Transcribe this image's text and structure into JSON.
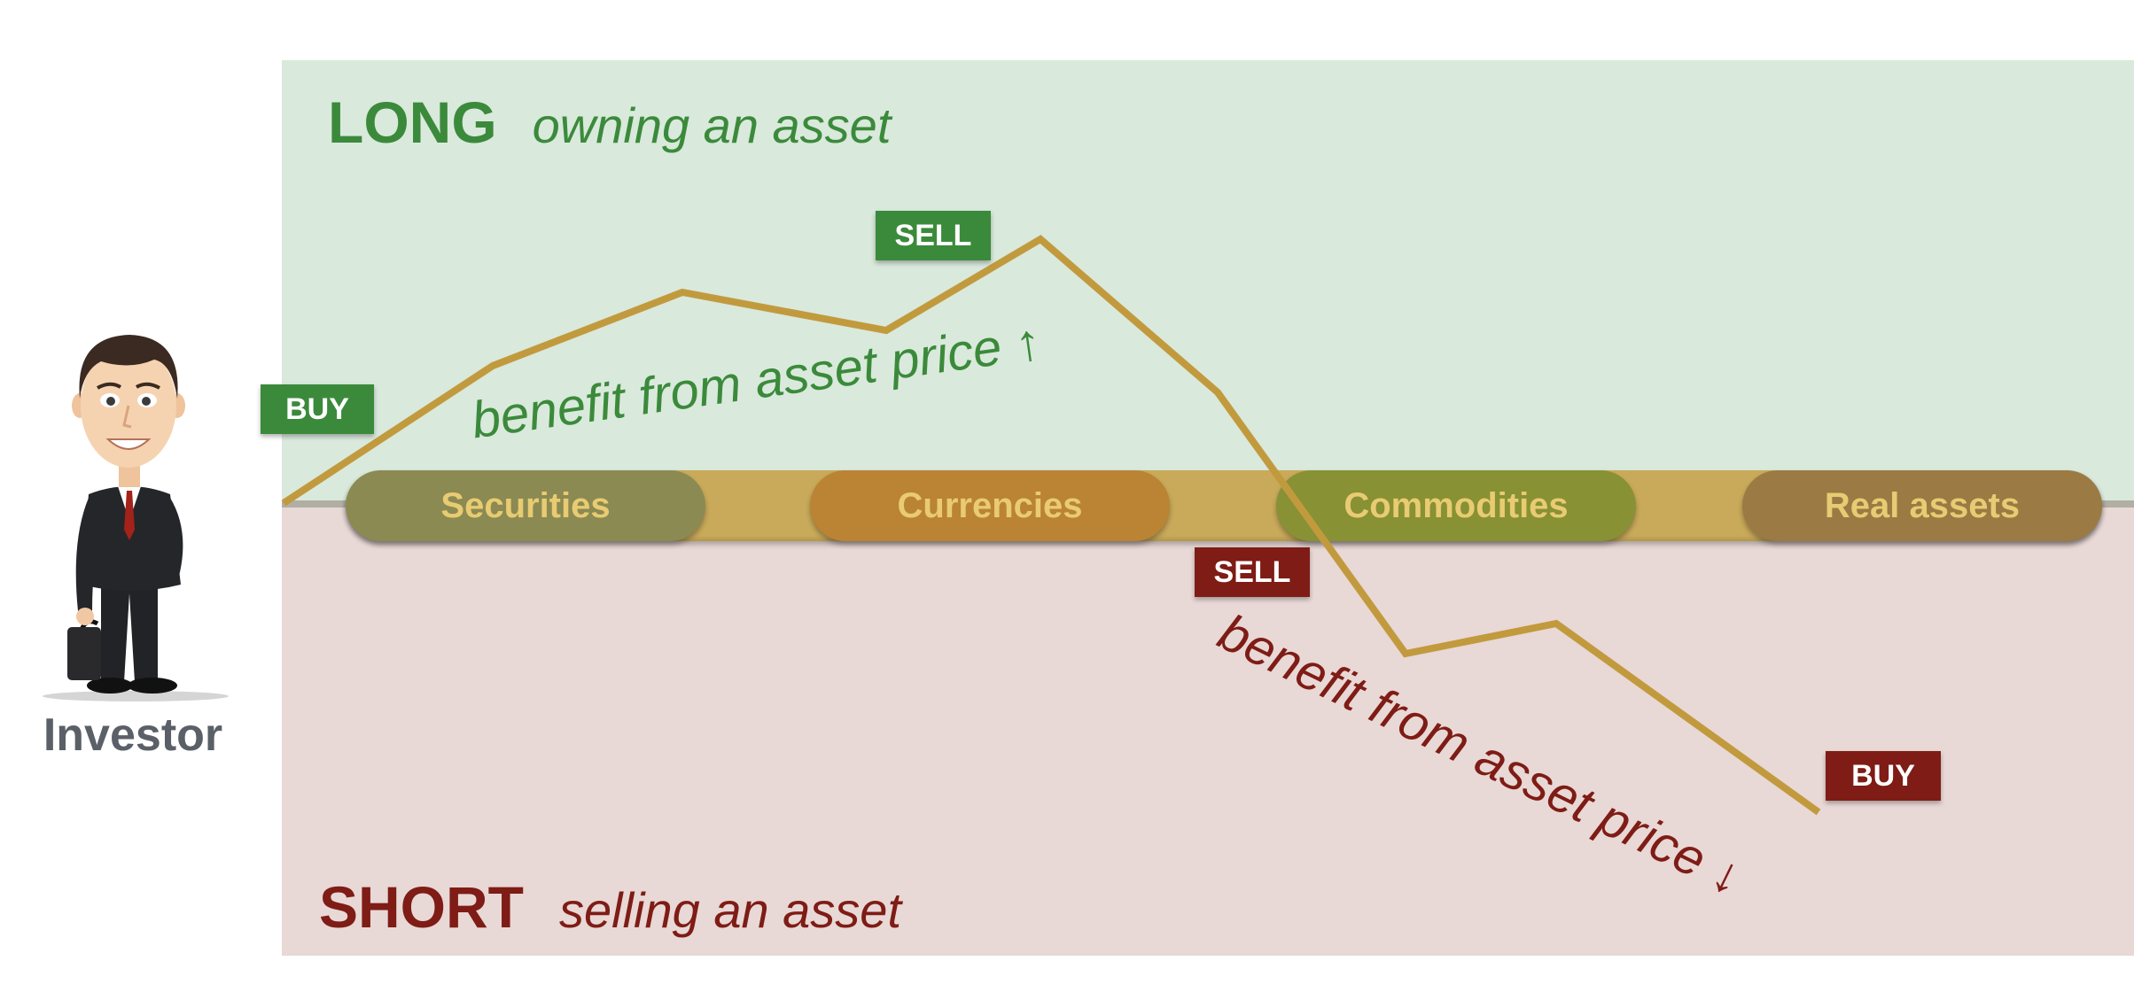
{
  "long": {
    "word": "LONG",
    "description": "owning an asset",
    "benefit": "benefit from asset price ↑",
    "tag_buy": "BUY",
    "tag_sell": "SELL",
    "color": "#3b8a3b",
    "zone_color": "#d9e9dc"
  },
  "short": {
    "word": "SHORT",
    "description": "selling an asset",
    "benefit": "benefit from asset price ↓",
    "tag_sell": "SELL",
    "tag_buy": "BUY",
    "color": "#7e1c15",
    "zone_color": "#e8d8d6"
  },
  "assets": [
    "Securities",
    "Currencies",
    "Commodities",
    "Real assets"
  ],
  "investor": {
    "label": "Investor",
    "icon": "businessman-with-briefcase-icon"
  },
  "price_path": {
    "color": "#c29a3e"
  }
}
